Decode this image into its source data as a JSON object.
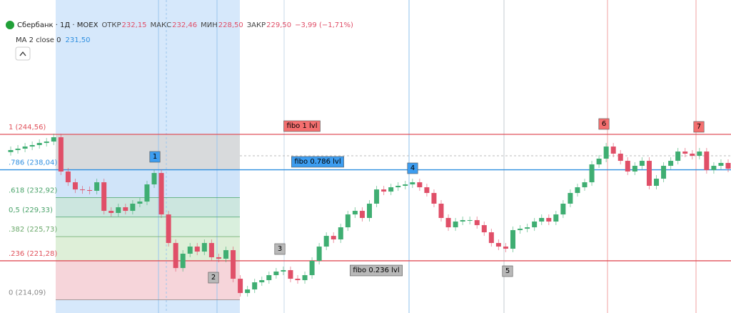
{
  "chart_data": {
    "type": "candlestick",
    "header": {
      "symbol": "Сбербанк · 1Д · MOEX",
      "open_label": "ОТКР",
      "open": "232,15",
      "high_label": "МАКС",
      "high": "232,46",
      "low_label": "МИН",
      "low": "228,50",
      "close_label": "ЗАКР",
      "close": "229,50",
      "change": "−3,99 (−1,71%)"
    },
    "indicator": {
      "name": "MA 2 close 0",
      "value": "231,50"
    },
    "ylim": [
      211.67,
      269.3
    ],
    "up_color": "#3fae72",
    "down_color": "#e04f68",
    "open": [
      241.3,
      241.67,
      241.93,
      242.32,
      242.59,
      242.98,
      243.24,
      244.03,
      237.72,
      235.74,
      234.42,
      234.3,
      234.17,
      235.74,
      230.48,
      230.09,
      231.14,
      230.48,
      231.8,
      232.19,
      235.35,
      237.45,
      229.82,
      224.56,
      219.95,
      222.59,
      223.9,
      222.98,
      224.56,
      221.93,
      221.67,
      223.24,
      217.98,
      215.35,
      216.01,
      217.32,
      217.72,
      218.64,
      219.3,
      219.56,
      217.98,
      217.72,
      218.64,
      221.27,
      223.9,
      225.87,
      225.22,
      227.45,
      229.82,
      230.48,
      229.17,
      231.8,
      234.42,
      234.03,
      234.82,
      235.09,
      235.35,
      235.74,
      234.82,
      233.77,
      231.8,
      229.17,
      227.45,
      228.51,
      228.77,
      228.77,
      227.85,
      226.53,
      224.56,
      223.9,
      223.51,
      226.93,
      227.19,
      227.45,
      228.51,
      229.17,
      228.51,
      229.82,
      231.8,
      233.77,
      234.82,
      235.74,
      239.03,
      240.09,
      242.32,
      241.01,
      239.69,
      237.72,
      238.77,
      239.69,
      235.09,
      236.4,
      238.77,
      239.69,
      241.4,
      241.01,
      240.61,
      241.4,
      237.98,
      238.77,
      239.3
    ],
    "close": [
      241.67,
      241.93,
      242.32,
      242.59,
      242.98,
      243.24,
      244.03,
      237.72,
      235.74,
      234.42,
      234.3,
      234.17,
      235.74,
      230.48,
      230.09,
      231.14,
      230.48,
      231.8,
      232.19,
      235.35,
      237.45,
      229.82,
      224.56,
      219.95,
      222.59,
      223.9,
      222.98,
      224.56,
      221.93,
      221.67,
      223.24,
      217.98,
      215.35,
      216.01,
      217.32,
      217.72,
      218.64,
      219.3,
      219.56,
      217.98,
      217.72,
      218.64,
      221.27,
      223.9,
      225.87,
      225.22,
      227.45,
      229.82,
      230.48,
      229.17,
      231.8,
      234.42,
      234.03,
      234.82,
      235.09,
      235.35,
      235.74,
      234.82,
      233.77,
      231.8,
      229.17,
      227.45,
      228.51,
      228.77,
      228.77,
      227.85,
      226.53,
      224.56,
      223.9,
      223.51,
      226.93,
      227.19,
      227.45,
      228.51,
      229.17,
      228.51,
      229.82,
      231.8,
      233.77,
      234.82,
      235.74,
      239.03,
      240.09,
      242.32,
      241.01,
      239.69,
      237.72,
      238.77,
      239.69,
      235.09,
      236.4,
      238.77,
      239.69,
      241.4,
      241.01,
      240.61,
      241.4,
      237.98,
      238.77,
      239.3,
      238.25
    ],
    "fib_levels": [
      {
        "value": 244.56,
        "label": "1 (244,56)",
        "color": "#e0505a"
      },
      {
        "value": 238.04,
        "label": ".786 (238,04)",
        "color": "#2f8fe0"
      },
      {
        "value": 232.92,
        "label": ".618 (232,92)",
        "color": "#4aa36a"
      },
      {
        "value": 229.33,
        "label": "0,5 (229,33)",
        "color": "#4aa36a"
      },
      {
        "value": 225.73,
        "label": ".382 (225,73)",
        "color": "#6aa86a"
      },
      {
        "value": 221.28,
        "label": ".236 (221,28)",
        "color": "#e0505a"
      },
      {
        "value": 214.09,
        "label": "0 (214,09)",
        "color": "#888888"
      }
    ],
    "annotations": [
      "fibo 1 lvl",
      "fibo 0.786 lvl",
      "fibo 0.236 lvl",
      "1",
      "2",
      "3",
      "4",
      "5",
      "6",
      "7"
    ]
  }
}
